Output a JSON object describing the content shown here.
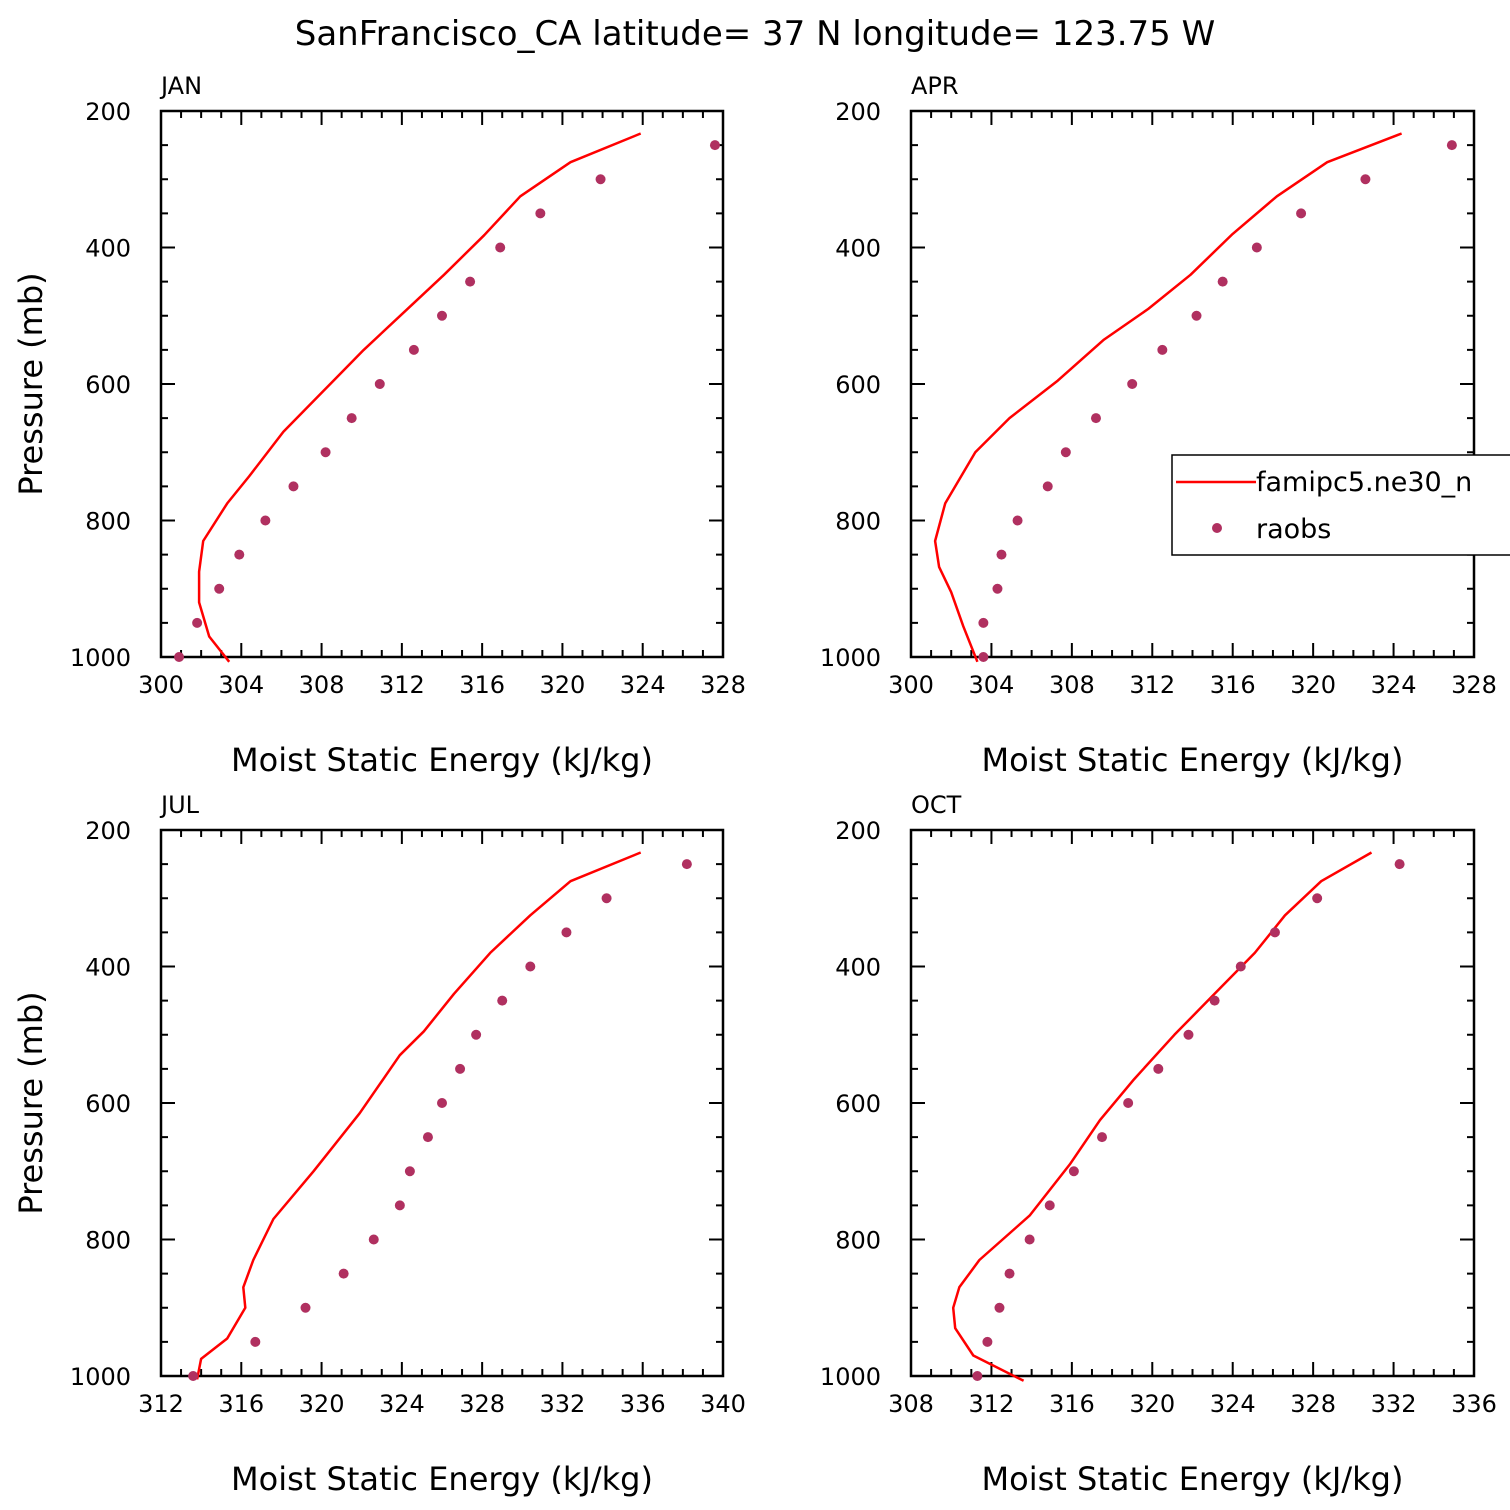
{
  "title": "SanFrancisco_CA  latitude= 37 N longitude= 123.75 W",
  "colors": {
    "model": "#ff0000",
    "obs": "#b03060",
    "axis": "#000000"
  },
  "legend": {
    "model_label": "famipc5.ne30_n",
    "obs_label": "raobs",
    "placement": "right-middle of APR panel"
  },
  "chart_data": [
    {
      "type": "line+scatter",
      "name": "JAN",
      "title": "JAN",
      "xlabel": "Moist Static Energy (kJ/kg)",
      "ylabel": "Pressure (mb)",
      "xlim": [
        300,
        328
      ],
      "xticks": [
        300,
        304,
        308,
        312,
        316,
        320,
        324,
        328
      ],
      "ylim": [
        200,
        1000
      ],
      "yticks": [
        200,
        400,
        600,
        800,
        1000
      ],
      "model": {
        "x": [
          323.9,
          320.4,
          317.9,
          316.1,
          314.1,
          312.1,
          310.1,
          308.1,
          306.1,
          304.4,
          303.3,
          302.1,
          301.9,
          301.9,
          302.4,
          303.4
        ],
        "p": [
          233,
          275,
          325,
          382,
          440,
          495,
          550,
          610,
          670,
          735,
          775,
          830,
          875,
          920,
          970,
          1007
        ]
      },
      "obs": {
        "x": [
          327.6,
          321.9,
          318.9,
          316.9,
          315.4,
          314.0,
          312.6,
          310.9,
          309.5,
          308.2,
          306.6,
          305.2,
          303.9,
          302.9,
          301.8,
          300.9
        ],
        "p": [
          250,
          300,
          350,
          400,
          450,
          500,
          550,
          600,
          650,
          700,
          750,
          800,
          850,
          900,
          950,
          1000
        ]
      }
    },
    {
      "type": "line+scatter",
      "name": "APR",
      "title": "APR",
      "xlabel": "Moist Static Energy (kJ/kg)",
      "ylabel": "",
      "xlim": [
        300,
        328
      ],
      "xticks": [
        300,
        304,
        308,
        312,
        316,
        320,
        324,
        328
      ],
      "ylim": [
        200,
        1000
      ],
      "yticks": [
        200,
        400,
        600,
        800,
        1000
      ],
      "model": {
        "x": [
          324.4,
          320.7,
          318.2,
          316.0,
          313.9,
          311.8,
          309.6,
          307.3,
          304.9,
          303.2,
          301.7,
          301.2,
          301.4,
          302.0,
          302.6,
          303.3
        ],
        "p": [
          233,
          275,
          325,
          380,
          440,
          490,
          535,
          595,
          650,
          700,
          775,
          830,
          868,
          905,
          955,
          1007
        ]
      },
      "obs": {
        "x": [
          326.9,
          322.6,
          319.4,
          317.2,
          315.5,
          314.2,
          312.5,
          311.0,
          309.2,
          307.7,
          306.8,
          305.3,
          304.5,
          304.3,
          303.6,
          303.6
        ],
        "p": [
          250,
          300,
          350,
          400,
          450,
          500,
          550,
          600,
          650,
          700,
          750,
          800,
          850,
          900,
          950,
          1000
        ]
      }
    },
    {
      "type": "line+scatter",
      "name": "JUL",
      "title": "JUL",
      "xlabel": "Moist Static Energy (kJ/kg)",
      "ylabel": "Pressure (mb)",
      "xlim": [
        312,
        340
      ],
      "xticks": [
        312,
        316,
        320,
        324,
        328,
        332,
        336,
        340
      ],
      "ylim": [
        200,
        1000
      ],
      "yticks": [
        200,
        400,
        600,
        800,
        1000
      ],
      "model": {
        "x": [
          335.9,
          332.4,
          330.4,
          328.4,
          326.6,
          325.1,
          323.9,
          321.9,
          319.6,
          317.6,
          316.6,
          316.1,
          316.2,
          315.3,
          314.0,
          313.8
        ],
        "p": [
          233,
          275,
          325,
          380,
          440,
          495,
          530,
          615,
          700,
          770,
          830,
          870,
          900,
          945,
          975,
          1005
        ]
      },
      "obs": {
        "x": [
          338.2,
          334.2,
          332.2,
          330.4,
          329.0,
          327.7,
          326.9,
          326.0,
          325.3,
          324.4,
          323.9,
          322.6,
          321.1,
          319.2,
          316.7,
          313.6
        ],
        "p": [
          250,
          300,
          350,
          400,
          450,
          500,
          550,
          600,
          650,
          700,
          750,
          800,
          850,
          900,
          950,
          1000
        ]
      }
    },
    {
      "type": "line+scatter",
      "name": "OCT",
      "title": "OCT",
      "xlabel": "Moist Static Energy (kJ/kg)",
      "ylabel": "",
      "xlim": [
        308,
        336
      ],
      "xticks": [
        308,
        312,
        316,
        320,
        324,
        328,
        332,
        336
      ],
      "ylim": [
        200,
        1000
      ],
      "yticks": [
        200,
        400,
        600,
        800,
        1000
      ],
      "model": {
        "x": [
          330.9,
          328.4,
          326.6,
          325.1,
          323.1,
          321.1,
          319.1,
          317.4,
          315.9,
          313.9,
          311.4,
          310.4,
          310.1,
          310.2,
          311.1,
          313.6
        ],
        "p": [
          233,
          275,
          325,
          380,
          440,
          500,
          565,
          625,
          690,
          765,
          830,
          870,
          900,
          930,
          970,
          1007
        ]
      },
      "obs": {
        "x": [
          332.3,
          328.2,
          326.1,
          324.4,
          323.1,
          321.8,
          320.3,
          318.8,
          317.5,
          316.1,
          314.9,
          313.9,
          312.9,
          312.4,
          311.8,
          311.3
        ],
        "p": [
          250,
          300,
          350,
          400,
          450,
          500,
          550,
          600,
          650,
          700,
          750,
          800,
          850,
          900,
          950,
          1000
        ]
      }
    }
  ]
}
